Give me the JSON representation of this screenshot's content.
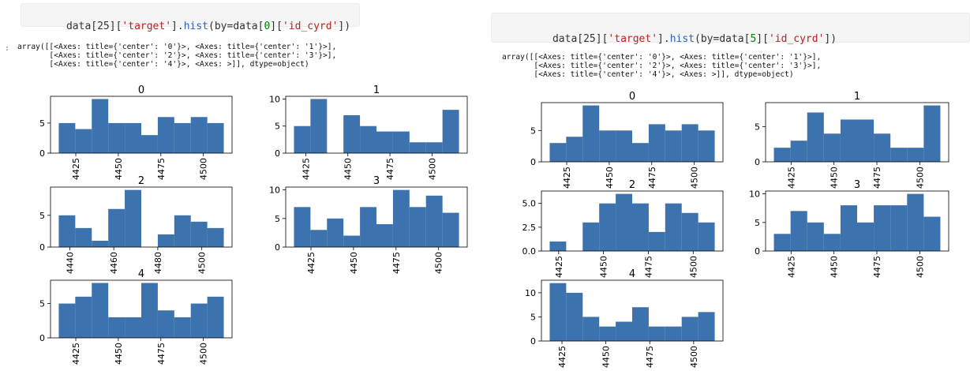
{
  "left": {
    "prompt": ":",
    "code": {
      "prefix": "data[25][",
      "str1": "'target'",
      "mid1": "].",
      "method": "hist",
      "mid2": "(by=data[",
      "index": "0",
      "mid3": "][",
      "str2": "'id_cyrd'",
      "suffix": "])"
    },
    "output_lines": [
      "array([[<Axes: title={'center': '0'}>, <Axes: title={'center': '1'}>],",
      "       [<Axes: title={'center': '2'}>, <Axes: title={'center': '3'}>],",
      "       [<Axes: title={'center': '4'}>, <Axes: >]], dtype=object)"
    ]
  },
  "right": {
    "code": {
      "prefix": "data[25][",
      "str1": "'target'",
      "mid1": "].",
      "method": "hist",
      "mid2": "(by=data[",
      "index": "5",
      "mid3": "][",
      "str2": "'id_cyrd'",
      "suffix": "])"
    },
    "output_lines": [
      "array([[<Axes: title={'center': '0'}>, <Axes: title={'center': '1'}>],",
      "       [<Axes: title={'center': '2'}>, <Axes: title={'center': '3'}>],",
      "       [<Axes: title={'center': '4'}>, <Axes: >]], dtype=object)"
    ]
  },
  "colors": {
    "bar": "#3c72ad",
    "axis": "#000000",
    "code_bg": "#f5f5f5"
  },
  "chart_data": [
    {
      "group": "left",
      "type": "bar",
      "title": "0",
      "bin_range": [
        4415,
        4512
      ],
      "values": [
        5,
        4,
        9,
        5,
        5,
        3,
        6,
        5,
        6,
        5
      ],
      "ylim": [
        0,
        9.45
      ],
      "yticks": [
        0,
        5
      ],
      "yticklabels": [
        "0",
        "5"
      ],
      "xticks": [
        4425,
        4450,
        4475,
        4500
      ],
      "xticklabels": [
        "4425",
        "4450",
        "4475",
        "4500"
      ],
      "xrot": -90
    },
    {
      "group": "left",
      "type": "bar",
      "title": "1",
      "bin_range": [
        4418,
        4516
      ],
      "values": [
        5,
        10,
        0,
        7,
        5,
        4,
        4,
        2,
        2,
        8
      ],
      "ylim": [
        0,
        10.5
      ],
      "yticks": [
        0,
        5,
        10
      ],
      "yticklabels": [
        "0",
        "5",
        "10"
      ],
      "xticks": [
        4425,
        4450,
        4475,
        4500
      ],
      "xticklabels": [
        "4425",
        "4450",
        "4475",
        "4500"
      ],
      "xrot": -90
    },
    {
      "group": "left",
      "type": "bar",
      "title": "2",
      "bin_range": [
        4435,
        4510
      ],
      "values": [
        5,
        3,
        1,
        6,
        9,
        0,
        2,
        5,
        4,
        3
      ],
      "ylim": [
        0,
        9.45
      ],
      "yticks": [
        0,
        5
      ],
      "yticklabels": [
        "0",
        "5"
      ],
      "xticks": [
        4440,
        4460,
        4480,
        4500
      ],
      "xticklabels": [
        "4440",
        "4460",
        "4480",
        "4500"
      ],
      "xrot": -90
    },
    {
      "group": "left",
      "type": "bar",
      "title": "3",
      "bin_range": [
        4415,
        4512
      ],
      "values": [
        7,
        3,
        5,
        2,
        7,
        4,
        10,
        7,
        9,
        6
      ],
      "ylim": [
        0,
        10.5
      ],
      "yticks": [
        0,
        5,
        10
      ],
      "yticklabels": [
        "0",
        "5",
        "10"
      ],
      "xticks": [
        4425,
        4450,
        4475,
        4500
      ],
      "xticklabels": [
        "4425",
        "4450",
        "4475",
        "4500"
      ],
      "xrot": -90
    },
    {
      "group": "left",
      "type": "bar",
      "title": "4",
      "bin_range": [
        4415,
        4512
      ],
      "values": [
        5,
        6,
        8,
        3,
        3,
        8,
        4,
        3,
        5,
        6
      ],
      "ylim": [
        0,
        8.4
      ],
      "yticks": [
        0,
        5
      ],
      "yticklabels": [
        "0",
        "5"
      ],
      "xticks": [
        4425,
        4450,
        4475,
        4500
      ],
      "xticklabels": [
        "4425",
        "4450",
        "4475",
        "4500"
      ],
      "xrot": -90
    },
    {
      "group": "right",
      "type": "bar",
      "title": "0",
      "bin_range": [
        4415,
        4512
      ],
      "values": [
        3,
        4,
        9,
        5,
        5,
        3,
        6,
        5,
        6,
        5
      ],
      "ylim": [
        0,
        9.45
      ],
      "yticks": [
        0,
        5
      ],
      "yticklabels": [
        "0",
        "5"
      ],
      "xticks": [
        4425,
        4450,
        4475,
        4500
      ],
      "xticklabels": [
        "4425",
        "4450",
        "4475",
        "4500"
      ],
      "xrot": -90
    },
    {
      "group": "right",
      "type": "bar",
      "title": "1",
      "bin_range": [
        4415,
        4512
      ],
      "values": [
        2,
        3,
        7,
        4,
        6,
        6,
        4,
        2,
        2,
        8
      ],
      "ylim": [
        0,
        8.4
      ],
      "yticks": [
        0,
        5
      ],
      "yticklabels": [
        "0",
        "5"
      ],
      "xticks": [
        4425,
        4450,
        4475,
        4500
      ],
      "xticklabels": [
        "4425",
        "4450",
        "4475",
        "4500"
      ],
      "xrot": -90
    },
    {
      "group": "right",
      "type": "bar",
      "title": "2",
      "bin_range": [
        4420,
        4512
      ],
      "values": [
        1,
        0,
        3,
        5,
        6,
        5,
        2,
        5,
        4,
        3
      ],
      "ylim": [
        0,
        6.3
      ],
      "yticks": [
        0,
        2.5,
        5
      ],
      "yticklabels": [
        "0.0",
        "2.5",
        "5.0"
      ],
      "xticks": [
        4425,
        4450,
        4475,
        4500
      ],
      "xticklabels": [
        "4425",
        "4450",
        "4475",
        "4500"
      ],
      "xrot": -90
    },
    {
      "group": "right",
      "type": "bar",
      "title": "3",
      "bin_range": [
        4415,
        4512
      ],
      "values": [
        3,
        7,
        5,
        3,
        8,
        5,
        8,
        8,
        10,
        6
      ],
      "ylim": [
        0,
        10.5
      ],
      "yticks": [
        0,
        5,
        10
      ],
      "yticklabels": [
        "0",
        "5",
        "10"
      ],
      "xticks": [
        4425,
        4450,
        4475,
        4500
      ],
      "xticklabels": [
        "4425",
        "4450",
        "4475",
        "4500"
      ],
      "xrot": -90
    },
    {
      "group": "right",
      "type": "bar",
      "title": "4",
      "bin_range": [
        4418,
        4512
      ],
      "values": [
        12,
        10,
        5,
        3,
        4,
        7,
        3,
        3,
        5,
        6
      ],
      "ylim": [
        0,
        12.6
      ],
      "yticks": [
        0,
        5,
        10
      ],
      "yticklabels": [
        "0",
        "5",
        "10"
      ],
      "xticks": [
        4425,
        4450,
        4475,
        4500
      ],
      "xticklabels": [
        "4425",
        "4450",
        "4475",
        "4500"
      ],
      "xrot": -90
    }
  ]
}
